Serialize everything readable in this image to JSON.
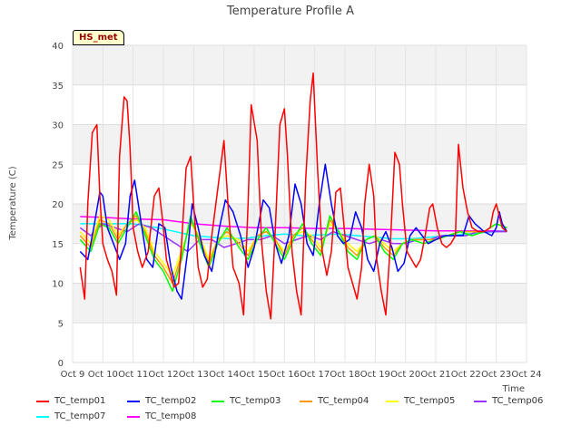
{
  "site_label": "HS_met",
  "chart_data": {
    "type": "line",
    "title": "Temperature Profile A",
    "xlabel": "Time",
    "ylabel": "Temperature (C)",
    "ylim": [
      0,
      40
    ],
    "yticks": [
      0,
      5,
      10,
      15,
      20,
      25,
      30,
      35,
      40
    ],
    "xlim": [
      0,
      15
    ],
    "xticks": [
      {
        "v": 0,
        "label": "Oct 9"
      },
      {
        "v": 1,
        "label": "Oct 10"
      },
      {
        "v": 2,
        "label": "Oct 11"
      },
      {
        "v": 3,
        "label": "Oct 12"
      },
      {
        "v": 4,
        "label": "Oct 13"
      },
      {
        "v": 5,
        "label": "Oct 14"
      },
      {
        "v": 6,
        "label": "Oct 15"
      },
      {
        "v": 7,
        "label": "Oct 16"
      },
      {
        "v": 8,
        "label": "Oct 17"
      },
      {
        "v": 9,
        "label": "Oct 18"
      },
      {
        "v": 10,
        "label": "Oct 19"
      },
      {
        "v": 11,
        "label": "Oct 20"
      },
      {
        "v": 12,
        "label": "Oct 21"
      },
      {
        "v": 13,
        "label": "Oct 22"
      },
      {
        "v": 14,
        "label": "Oct 23"
      },
      {
        "v": 15,
        "label": "Oct 24"
      }
    ],
    "grid": true,
    "legend_position": "bottom",
    "series": [
      {
        "name": "TC_temp01",
        "color": "#ff0000",
        "x": [
          0.25,
          0.4,
          0.5,
          0.65,
          0.8,
          0.9,
          1.0,
          1.15,
          1.3,
          1.45,
          1.55,
          1.7,
          1.8,
          1.9,
          2.0,
          2.15,
          2.3,
          2.5,
          2.7,
          2.85,
          3.0,
          3.1,
          3.25,
          3.35,
          3.5,
          3.6,
          3.75,
          3.9,
          4.0,
          4.15,
          4.3,
          4.45,
          4.6,
          4.8,
          5.0,
          5.15,
          5.3,
          5.5,
          5.65,
          5.8,
          5.9,
          6.1,
          6.25,
          6.4,
          6.55,
          6.7,
          6.85,
          7.0,
          7.1,
          7.25,
          7.4,
          7.55,
          7.7,
          7.85,
          7.95,
          8.1,
          8.25,
          8.4,
          8.55,
          8.7,
          8.85,
          8.95,
          9.1,
          9.25,
          9.4,
          9.55,
          9.65,
          9.8,
          9.95,
          10.05,
          10.2,
          10.35,
          10.5,
          10.65,
          10.8,
          10.9,
          11.05,
          11.2,
          11.35,
          11.5,
          11.65,
          11.8,
          11.9,
          12.05,
          12.2,
          12.35,
          12.5,
          12.65,
          12.75,
          12.9,
          13.05,
          13.2,
          13.4,
          13.6,
          13.8,
          13.9,
          14.0,
          14.1,
          14.2,
          14.35
        ],
        "y": [
          12.0,
          8.0,
          20.0,
          29.0,
          30.0,
          21.0,
          15.0,
          13.0,
          11.5,
          8.5,
          26.0,
          33.5,
          33.0,
          27.0,
          17.0,
          14.0,
          12.0,
          14.0,
          21.0,
          22.0,
          17.0,
          13.0,
          11.0,
          9.5,
          10.0,
          15.0,
          24.5,
          26.0,
          20.0,
          12.0,
          9.5,
          10.5,
          16.0,
          22.0,
          28.0,
          19.0,
          12.0,
          10.0,
          6.0,
          20.0,
          32.5,
          28.0,
          15.0,
          9.0,
          5.5,
          17.0,
          30.0,
          32.0,
          26.0,
          14.0,
          9.0,
          6.0,
          23.0,
          33.0,
          36.5,
          24.0,
          14.0,
          11.0,
          14.0,
          21.5,
          22.0,
          18.0,
          12.0,
          10.0,
          8.0,
          12.0,
          20.0,
          25.0,
          21.0,
          13.0,
          9.0,
          6.0,
          15.0,
          26.5,
          25.0,
          20.0,
          14.0,
          13.0,
          12.0,
          13.0,
          16.0,
          19.5,
          20.0,
          17.0,
          15.0,
          14.5,
          15.0,
          16.0,
          27.5,
          22.0,
          19.0,
          17.0,
          16.5,
          16.5,
          17.0,
          19.0,
          20.0,
          18.5,
          17.0,
          16.5
        ]
      },
      {
        "name": "TC_temp02",
        "color": "#0000ff",
        "x": [
          0.25,
          0.5,
          0.7,
          0.9,
          1.0,
          1.15,
          1.35,
          1.55,
          1.75,
          1.9,
          2.05,
          2.25,
          2.45,
          2.65,
          2.85,
          3.05,
          3.25,
          3.45,
          3.6,
          3.8,
          3.95,
          4.15,
          4.35,
          4.6,
          4.85,
          5.05,
          5.3,
          5.55,
          5.8,
          6.0,
          6.3,
          6.5,
          6.7,
          6.9,
          7.15,
          7.35,
          7.55,
          7.75,
          7.95,
          8.15,
          8.35,
          8.55,
          8.75,
          8.95,
          9.15,
          9.35,
          9.55,
          9.75,
          9.95,
          10.15,
          10.35,
          10.55,
          10.75,
          10.95,
          11.15,
          11.35,
          11.55,
          11.75,
          12.0,
          12.3,
          12.6,
          12.9,
          13.1,
          13.3,
          13.6,
          13.85,
          14.0,
          14.1,
          14.2,
          14.35
        ],
        "y": [
          14.0,
          13.0,
          17.0,
          21.5,
          21.0,
          17.0,
          15.0,
          13.0,
          15.0,
          21.0,
          23.0,
          18.0,
          13.0,
          12.0,
          17.5,
          17.0,
          12.0,
          9.0,
          8.0,
          14.0,
          20.0,
          17.0,
          13.5,
          11.5,
          17.0,
          20.5,
          19.0,
          16.0,
          12.0,
          14.5,
          20.5,
          19.5,
          15.0,
          12.5,
          16.0,
          22.5,
          20.0,
          15.0,
          13.5,
          20.0,
          25.0,
          20.0,
          16.0,
          15.0,
          15.5,
          19.0,
          17.0,
          13.0,
          11.5,
          15.0,
          16.5,
          14.5,
          11.5,
          12.5,
          16.0,
          17.0,
          16.0,
          15.0,
          15.5,
          16.0,
          16.0,
          16.0,
          18.5,
          17.5,
          16.5,
          16.0,
          17.0,
          19.0,
          17.5,
          16.5
        ]
      },
      {
        "name": "TC_temp03",
        "color": "#00ff00",
        "x": [
          0.25,
          0.6,
          0.9,
          1.2,
          1.5,
          1.8,
          2.1,
          2.4,
          2.7,
          3.0,
          3.3,
          3.6,
          3.9,
          4.2,
          4.5,
          4.8,
          5.1,
          5.5,
          5.8,
          6.1,
          6.4,
          6.7,
          7.0,
          7.3,
          7.6,
          7.9,
          8.2,
          8.5,
          8.8,
          9.1,
          9.4,
          9.7,
          10.0,
          10.3,
          10.6,
          10.9,
          11.2,
          11.6,
          12.0,
          12.4,
          12.8,
          13.2,
          13.6,
          14.0,
          14.35
        ],
        "y": [
          15.5,
          14.0,
          17.5,
          17.0,
          15.0,
          17.0,
          19.0,
          16.0,
          13.0,
          11.5,
          9.0,
          13.0,
          18.5,
          15.0,
          12.0,
          15.0,
          17.0,
          14.5,
          13.0,
          15.5,
          17.0,
          15.0,
          13.0,
          15.5,
          17.5,
          15.0,
          13.5,
          18.5,
          16.5,
          14.0,
          13.0,
          15.5,
          16.0,
          14.0,
          13.0,
          15.0,
          15.5,
          15.0,
          15.5,
          16.0,
          16.5,
          16.0,
          16.5,
          17.5,
          17.0
        ]
      },
      {
        "name": "TC_temp04",
        "color": "#ff9900",
        "x": [
          0.25,
          0.6,
          0.9,
          1.2,
          1.5,
          1.8,
          2.1,
          2.4,
          2.7,
          3.0,
          3.3,
          3.6,
          3.9,
          4.2,
          4.5,
          4.8,
          5.1,
          5.5,
          5.8,
          6.1,
          6.4,
          6.7,
          7.0,
          7.3,
          7.6,
          7.9,
          8.2,
          8.5,
          8.8,
          9.1,
          9.4,
          9.7,
          10.0,
          10.3,
          10.6,
          10.9,
          11.2,
          11.6,
          12.0,
          12.4,
          12.8,
          13.2,
          13.6,
          14.0,
          14.35
        ],
        "y": [
          16.0,
          14.5,
          18.0,
          17.5,
          15.5,
          17.5,
          18.5,
          16.5,
          13.5,
          12.0,
          10.0,
          13.5,
          18.0,
          15.5,
          12.5,
          15.5,
          16.5,
          15.0,
          13.5,
          16.0,
          16.5,
          15.5,
          13.5,
          16.0,
          17.0,
          15.5,
          14.0,
          18.0,
          16.5,
          14.5,
          13.5,
          15.5,
          16.0,
          14.5,
          13.5,
          15.0,
          15.5,
          15.5,
          15.5,
          16.0,
          16.5,
          16.5,
          16.5,
          17.5,
          17.0
        ]
      },
      {
        "name": "TC_temp05",
        "color": "#ffff00",
        "x": [
          0.25,
          0.6,
          0.9,
          1.2,
          1.5,
          1.8,
          2.1,
          2.4,
          2.7,
          3.0,
          3.3,
          3.6,
          3.9,
          4.2,
          4.5,
          4.8,
          5.1,
          5.5,
          5.8,
          6.1,
          6.4,
          6.7,
          7.0,
          7.3,
          7.6,
          7.9,
          8.2,
          8.5,
          8.8,
          9.1,
          9.4,
          9.7,
          10.0,
          10.3,
          10.6,
          10.9,
          11.2,
          11.6,
          12.0,
          12.4,
          12.8,
          13.2,
          13.6,
          14.0,
          14.35
        ],
        "y": [
          16.5,
          15.0,
          18.5,
          18.0,
          16.0,
          17.5,
          18.0,
          17.0,
          14.0,
          12.5,
          11.0,
          14.0,
          17.5,
          16.0,
          13.0,
          15.5,
          16.0,
          15.5,
          14.0,
          16.0,
          16.5,
          15.5,
          14.0,
          16.0,
          16.5,
          16.0,
          14.5,
          17.5,
          16.5,
          15.0,
          14.0,
          15.5,
          16.0,
          15.0,
          14.0,
          15.0,
          15.5,
          15.5,
          15.5,
          16.0,
          16.5,
          16.5,
          16.5,
          17.5,
          17.0
        ]
      },
      {
        "name": "TC_temp06",
        "color": "#9933ff",
        "x": [
          0.25,
          0.6,
          1.0,
          1.4,
          1.8,
          2.2,
          2.6,
          3.0,
          3.4,
          3.8,
          4.2,
          4.6,
          5.0,
          5.4,
          5.8,
          6.2,
          6.6,
          7.0,
          7.4,
          7.8,
          8.2,
          8.6,
          9.0,
          9.4,
          9.8,
          10.2,
          10.6,
          11.0,
          11.4,
          11.8,
          12.2,
          12.6,
          13.0,
          13.4,
          13.8,
          14.35
        ],
        "y": [
          17.0,
          16.0,
          17.5,
          17.0,
          16.5,
          17.5,
          17.0,
          16.0,
          15.0,
          14.0,
          15.5,
          15.5,
          14.5,
          15.0,
          15.5,
          15.5,
          16.0,
          15.0,
          15.5,
          16.0,
          15.5,
          16.5,
          16.0,
          15.5,
          15.0,
          15.5,
          15.0,
          15.0,
          15.5,
          15.5,
          16.0,
          16.0,
          16.0,
          16.5,
          16.5,
          16.5
        ]
      },
      {
        "name": "TC_temp07",
        "color": "#00ffff",
        "x": [
          0.25,
          1.0,
          2.0,
          2.8,
          3.4,
          4.0,
          4.6,
          5.2,
          5.8,
          6.4,
          7.0,
          7.6,
          8.2,
          8.8,
          9.4,
          10.0,
          10.6,
          11.2,
          11.8,
          12.4,
          13.0,
          13.6,
          14.35
        ],
        "y": [
          17.5,
          17.5,
          17.5,
          17.0,
          16.5,
          16.0,
          15.8,
          15.6,
          15.7,
          16.0,
          16.2,
          16.0,
          16.1,
          16.2,
          16.0,
          15.8,
          15.6,
          15.6,
          15.8,
          16.0,
          16.2,
          16.4,
          16.6
        ]
      },
      {
        "name": "TC_temp08",
        "color": "#ff00ff",
        "x": [
          0.25,
          1.0,
          2.0,
          3.0,
          4.0,
          5.0,
          6.0,
          7.0,
          8.0,
          9.0,
          10.0,
          11.0,
          12.0,
          13.0,
          14.0,
          14.35
        ],
        "y": [
          18.4,
          18.3,
          18.1,
          18.0,
          17.5,
          17.2,
          17.0,
          17.0,
          16.9,
          16.9,
          16.8,
          16.7,
          16.6,
          16.6,
          16.6,
          16.6
        ]
      }
    ]
  }
}
